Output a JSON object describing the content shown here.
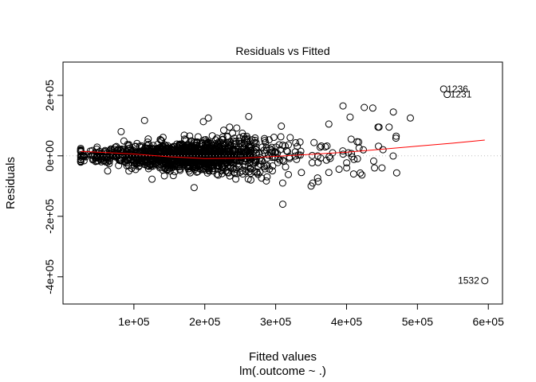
{
  "chart_data": {
    "type": "scatter",
    "title": "Residuals vs Fitted",
    "xlabel": "Fitted values",
    "sublabel": "lm(.outcome ~ .)",
    "ylabel": "Residuals",
    "xlim": [
      0,
      620000
    ],
    "ylim": [
      -490000,
      310000
    ],
    "x_ticks": [
      {
        "value": 100000,
        "label": "1e+05"
      },
      {
        "value": 200000,
        "label": "2e+05"
      },
      {
        "value": 300000,
        "label": "3e+05"
      },
      {
        "value": 400000,
        "label": "4e+05"
      },
      {
        "value": 500000,
        "label": "5e+05"
      },
      {
        "value": 600000,
        "label": "6e+05"
      }
    ],
    "y_ticks": [
      {
        "value": -400000,
        "label": "-4e+05"
      },
      {
        "value": -200000,
        "label": "-2e+05"
      },
      {
        "value": 0,
        "label": "0e+00"
      },
      {
        "value": 200000,
        "label": "2e+05"
      }
    ],
    "reference_line": {
      "y": 0,
      "style": "dotted",
      "color": "#bebebe"
    },
    "colors": {
      "points": "#000000",
      "smooth": "#ff0000",
      "reference": "#bebebe"
    },
    "labeled_points": [
      {
        "label": "1236",
        "x": 537000,
        "y": 221000
      },
      {
        "label": "1231",
        "x": 542000,
        "y": 203000
      },
      {
        "label": "1532",
        "x": 595000,
        "y": -413000
      }
    ],
    "outliers": [
      {
        "x": 115000,
        "y": 117000
      },
      {
        "x": 198000,
        "y": 113000
      },
      {
        "x": 205000,
        "y": 125000
      },
      {
        "x": 262000,
        "y": 130000
      },
      {
        "x": 395000,
        "y": 165000
      },
      {
        "x": 425000,
        "y": 160000
      },
      {
        "x": 437000,
        "y": 158000
      },
      {
        "x": 466000,
        "y": 145000
      },
      {
        "x": 490000,
        "y": 125000
      },
      {
        "x": 405000,
        "y": 128000
      },
      {
        "x": 310000,
        "y": -160000
      },
      {
        "x": 185000,
        "y": -105000
      },
      {
        "x": 350000,
        "y": -100000
      },
      {
        "x": 360000,
        "y": -85000
      },
      {
        "x": 265000,
        "y": -80000
      },
      {
        "x": 410000,
        "y": -60000
      },
      {
        "x": 82000,
        "y": 80000
      },
      {
        "x": 308000,
        "y": 98000
      },
      {
        "x": 375000,
        "y": 105000
      },
      {
        "x": 460000,
        "y": 95000
      },
      {
        "x": 470000,
        "y": 65000
      },
      {
        "x": 450000,
        "y": -40000
      },
      {
        "x": 375000,
        "y": -55000
      },
      {
        "x": 63000,
        "y": -50000
      },
      {
        "x": 235000,
        "y": 95000
      }
    ],
    "smooth_line": [
      {
        "x": 25000,
        "y": 15000
      },
      {
        "x": 100000,
        "y": 6000
      },
      {
        "x": 150000,
        "y": -3000
      },
      {
        "x": 200000,
        "y": -9000
      },
      {
        "x": 250000,
        "y": -8000
      },
      {
        "x": 300000,
        "y": -2000
      },
      {
        "x": 350000,
        "y": 5000
      },
      {
        "x": 400000,
        "y": 12000
      },
      {
        "x": 450000,
        "y": 22000
      },
      {
        "x": 500000,
        "y": 32000
      },
      {
        "x": 550000,
        "y": 42000
      },
      {
        "x": 595000,
        "y": 52000
      }
    ],
    "cloud": {
      "count": 1350,
      "x_range": [
        25000,
        480000
      ],
      "x_center": 175000,
      "note_spread": "residual spread grows with fitted value"
    }
  }
}
